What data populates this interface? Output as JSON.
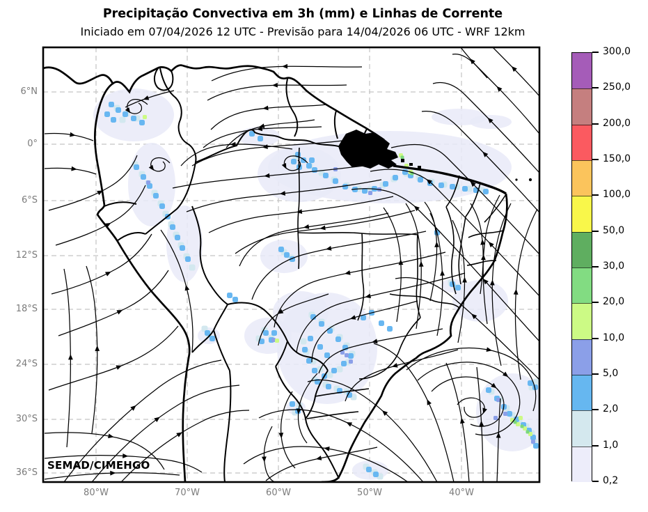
{
  "header": {
    "title": "Precipitação Convectiva em 3h (mm) e Linhas de Corrente",
    "subtitle": "Iniciado em 07/04/2026 12 UTC - Previsão para 14/04/2026 06 UTC - WRF 12km"
  },
  "credit": "SEMAD/CIMEHGO",
  "axes": {
    "lat_ticks": [
      "6°N",
      "0°",
      "6°S",
      "12°S",
      "18°S",
      "24°S",
      "30°S",
      "36°S"
    ],
    "lon_ticks": [
      "80°W",
      "70°W",
      "60°W",
      "50°W",
      "40°W"
    ]
  },
  "colorbar": {
    "tick_labels": [
      "300,0",
      "250,0",
      "200,0",
      "150,0",
      "100,0",
      "50,0",
      "30,0",
      "20,0",
      "10,0",
      "5,0",
      "2,0",
      "1,0",
      "0,2"
    ],
    "segment_colors_top_to_bottom": [
      "#A55CB8",
      "#C57F7F",
      "#FB5A60",
      "#FBC45C",
      "#F9F74A",
      "#5FAE60",
      "#82DC82",
      "#CCFA85",
      "#8B9FE8",
      "#66B7F0",
      "#D4E8EE",
      "#EDEDFA"
    ],
    "levels_mm": [
      0.2,
      1.0,
      2.0,
      5.0,
      10.0,
      20.0,
      30.0,
      50.0,
      100.0,
      150.0,
      200.0,
      250.0,
      300.0
    ]
  },
  "map": {
    "palette": {
      "lavender": "#E9EAF8",
      "pale_blue": "#D3E8EF",
      "blue": "#68B7F1",
      "blue_violet": "#8B9FE8",
      "lime": "#CCFA85",
      "green": "#7BD87B",
      "streamline": "#000000",
      "gridline": "#c3c3c3"
    }
  }
}
